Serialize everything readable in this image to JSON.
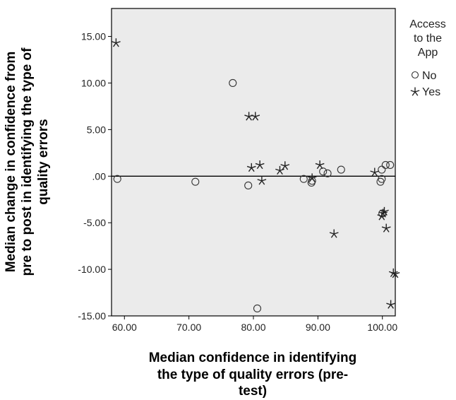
{
  "chart_data": {
    "type": "scatter",
    "xlabel_lines": [
      "Median confidence in identifying",
      "the type of quality errors (pre-",
      "test)"
    ],
    "ylabel_lines": [
      "Median change in confidence from",
      "pre to post in identifying the type of",
      "quality errors"
    ],
    "xlim": [
      58,
      102
    ],
    "ylim": [
      -15,
      18
    ],
    "xticks": [
      60,
      70,
      80,
      90,
      100
    ],
    "xtick_labels": [
      "60.00",
      "70.00",
      "80.00",
      "90.00",
      "100.00"
    ],
    "yticks": [
      15,
      10,
      5,
      0,
      -5,
      -10,
      -15
    ],
    "ytick_labels": [
      "15.00",
      "10.00",
      "5.00",
      ".00",
      "-5.00",
      "-10.00",
      "-15.00"
    ],
    "reference_line_y": 0,
    "grid": false,
    "background": "#ebebeb",
    "legend": {
      "title_lines": [
        "Access",
        "to the",
        "App"
      ],
      "placement": "right",
      "items": [
        {
          "label": "No",
          "marker": "circle"
        },
        {
          "label": "Yes",
          "marker": "star"
        }
      ]
    },
    "series": [
      {
        "name": "No",
        "marker": "circle",
        "points": [
          [
            58.9,
            -0.3
          ],
          [
            71.0,
            -0.6
          ],
          [
            76.8,
            10.0
          ],
          [
            79.2,
            -1.0
          ],
          [
            80.6,
            -14.2
          ],
          [
            87.8,
            -0.3
          ],
          [
            89.0,
            -0.7
          ],
          [
            89.1,
            -0.5
          ],
          [
            90.8,
            0.5
          ],
          [
            91.5,
            0.3
          ],
          [
            93.6,
            0.7
          ],
          [
            99.7,
            -0.6
          ],
          [
            99.9,
            -0.3
          ],
          [
            99.9,
            0.7
          ],
          [
            100.0,
            -4.0
          ],
          [
            100.5,
            1.2
          ],
          [
            101.2,
            1.2
          ]
        ]
      },
      {
        "name": "Yes",
        "marker": "star",
        "points": [
          [
            58.7,
            14.3
          ],
          [
            79.3,
            6.4
          ],
          [
            80.3,
            6.4
          ],
          [
            79.7,
            0.9
          ],
          [
            81.0,
            1.2
          ],
          [
            81.3,
            -0.5
          ],
          [
            84.1,
            0.6
          ],
          [
            84.9,
            1.1
          ],
          [
            89.1,
            -0.2
          ],
          [
            90.3,
            1.2
          ],
          [
            92.5,
            -6.2
          ],
          [
            98.8,
            0.4
          ],
          [
            99.9,
            -4.3
          ],
          [
            100.1,
            -4.0
          ],
          [
            100.3,
            -3.8
          ],
          [
            100.6,
            -5.6
          ],
          [
            101.3,
            -13.8
          ],
          [
            101.7,
            -10.4
          ],
          [
            102.0,
            -10.5
          ]
        ]
      }
    ]
  }
}
